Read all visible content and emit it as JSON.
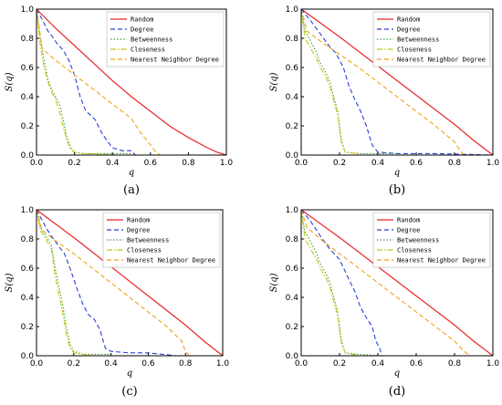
{
  "colors": {
    "Random": "#e8262a",
    "Degree": "#2a3fd6",
    "Betweenness": "#3aa23a",
    "Closeness": "#c8c81a",
    "Nearest Neighbor Degree": "#f2a118"
  },
  "chart_data": [
    {
      "type": "line",
      "panel_label": "(a)",
      "xlabel": "q",
      "ylabel": "S(q)",
      "xlim": [
        0,
        1
      ],
      "ylim": [
        0,
        1
      ],
      "xticks": [
        "0.0",
        "0.2",
        "0.4",
        "0.6",
        "0.8",
        "1.0"
      ],
      "yticks": [
        "0.0",
        "0.2",
        "0.4",
        "0.6",
        "0.8",
        "1.0"
      ],
      "grid": false,
      "legend_position": "top-right",
      "series": [
        {
          "name": "Random",
          "style": "solid",
          "x": [
            0,
            0.1,
            0.2,
            0.3,
            0.4,
            0.5,
            0.6,
            0.7,
            0.8,
            0.9,
            0.95,
            1.0
          ],
          "y": [
            1.0,
            0.87,
            0.75,
            0.63,
            0.51,
            0.4,
            0.3,
            0.2,
            0.12,
            0.05,
            0.02,
            0.0
          ]
        },
        {
          "name": "Degree",
          "style": "dashed",
          "x": [
            0,
            0.03,
            0.06,
            0.09,
            0.11,
            0.14,
            0.17,
            0.2,
            0.23,
            0.26,
            0.28,
            0.31,
            0.34,
            0.37,
            0.4,
            0.45,
            0.5,
            0.52
          ],
          "y": [
            1.0,
            0.93,
            0.85,
            0.8,
            0.76,
            0.72,
            0.65,
            0.55,
            0.4,
            0.3,
            0.28,
            0.24,
            0.16,
            0.1,
            0.05,
            0.03,
            0.03,
            0.0
          ]
        },
        {
          "name": "Betweenness",
          "style": "dotted",
          "x": [
            0,
            0.02,
            0.04,
            0.06,
            0.08,
            0.1,
            0.12,
            0.14,
            0.16,
            0.18,
            0.2,
            0.25,
            0.3,
            0.4,
            0.5
          ],
          "y": [
            1.0,
            0.8,
            0.65,
            0.52,
            0.45,
            0.4,
            0.35,
            0.25,
            0.12,
            0.05,
            0.02,
            0.01,
            0.01,
            0.01,
            0.01
          ]
        },
        {
          "name": "Closeness",
          "style": "dashdot",
          "x": [
            0,
            0.02,
            0.04,
            0.06,
            0.08,
            0.1,
            0.12,
            0.14,
            0.16,
            0.18,
            0.2,
            0.25,
            0.3,
            0.4
          ],
          "y": [
            1.0,
            0.75,
            0.6,
            0.5,
            0.43,
            0.38,
            0.3,
            0.2,
            0.1,
            0.04,
            0.02,
            0.01,
            0.01,
            0.0
          ]
        },
        {
          "name": "Nearest Neighbor Degree",
          "style": "dashed",
          "x": [
            0,
            0.03,
            0.1,
            0.2,
            0.3,
            0.4,
            0.5,
            0.55,
            0.6,
            0.63,
            0.65
          ],
          "y": [
            1.0,
            0.73,
            0.65,
            0.55,
            0.45,
            0.35,
            0.25,
            0.15,
            0.07,
            0.02,
            0.0
          ]
        }
      ]
    },
    {
      "type": "line",
      "panel_label": "(b)",
      "xlabel": "q",
      "ylabel": "S(q)",
      "xlim": [
        0,
        1
      ],
      "ylim": [
        0,
        1
      ],
      "xticks": [
        "0.0",
        "0.2",
        "0.4",
        "0.6",
        "0.8",
        "1.0"
      ],
      "yticks": [
        "0.0",
        "0.2",
        "0.4",
        "0.6",
        "0.8",
        "1.0"
      ],
      "grid": false,
      "legend_position": "top-right",
      "series": [
        {
          "name": "Random",
          "style": "solid",
          "x": [
            0,
            0.2,
            0.4,
            0.6,
            0.8,
            0.9,
            1.0
          ],
          "y": [
            1.0,
            0.81,
            0.61,
            0.41,
            0.21,
            0.1,
            0.0
          ]
        },
        {
          "name": "Degree",
          "style": "dashed",
          "x": [
            0,
            0.05,
            0.1,
            0.15,
            0.18,
            0.22,
            0.25,
            0.28,
            0.31,
            0.34,
            0.37,
            0.4,
            0.5,
            0.7,
            1.0
          ],
          "y": [
            1.0,
            0.92,
            0.83,
            0.74,
            0.7,
            0.6,
            0.47,
            0.38,
            0.3,
            0.2,
            0.07,
            0.02,
            0.01,
            0.01,
            0.0
          ]
        },
        {
          "name": "Betweenness",
          "style": "dotted",
          "x": [
            0,
            0.02,
            0.05,
            0.08,
            0.1,
            0.13,
            0.15,
            0.17,
            0.19,
            0.21,
            0.23,
            0.3,
            0.5
          ],
          "y": [
            1.0,
            0.85,
            0.78,
            0.7,
            0.63,
            0.56,
            0.5,
            0.4,
            0.3,
            0.1,
            0.02,
            0.01,
            0.01
          ]
        },
        {
          "name": "Closeness",
          "style": "dashdot",
          "x": [
            0,
            0.02,
            0.05,
            0.08,
            0.1,
            0.13,
            0.15,
            0.17,
            0.19,
            0.21,
            0.23,
            0.3
          ],
          "y": [
            1.0,
            0.8,
            0.73,
            0.66,
            0.6,
            0.53,
            0.47,
            0.37,
            0.28,
            0.08,
            0.02,
            0.01
          ]
        },
        {
          "name": "Nearest Neighbor Degree",
          "style": "dashed",
          "x": [
            0,
            0.03,
            0.1,
            0.2,
            0.3,
            0.4,
            0.5,
            0.6,
            0.7,
            0.8,
            0.83,
            0.85
          ],
          "y": [
            1.0,
            0.85,
            0.78,
            0.69,
            0.6,
            0.5,
            0.4,
            0.3,
            0.2,
            0.09,
            0.03,
            0.0
          ]
        }
      ]
    },
    {
      "type": "line",
      "panel_label": "(c)",
      "xlabel": "q",
      "ylabel": "S(q)",
      "xlim": [
        0,
        1
      ],
      "ylim": [
        0,
        1
      ],
      "xticks": [
        "0.0",
        "0.2",
        "0.4",
        "0.6",
        "0.8",
        "1.0"
      ],
      "yticks": [
        "0.0",
        "0.2",
        "0.4",
        "0.6",
        "0.8",
        "1.0"
      ],
      "grid": false,
      "legend_position": "top-right",
      "series": [
        {
          "name": "Random",
          "style": "solid",
          "x": [
            0,
            0.2,
            0.4,
            0.6,
            0.8,
            0.9,
            1.0
          ],
          "y": [
            1.0,
            0.81,
            0.61,
            0.41,
            0.21,
            0.1,
            0.0
          ]
        },
        {
          "name": "Degree",
          "style": "dashed",
          "x": [
            0,
            0.05,
            0.08,
            0.12,
            0.15,
            0.18,
            0.22,
            0.25,
            0.28,
            0.31,
            0.34,
            0.37,
            0.4,
            0.5,
            0.6,
            0.75
          ],
          "y": [
            1.0,
            0.88,
            0.82,
            0.75,
            0.7,
            0.6,
            0.45,
            0.35,
            0.28,
            0.25,
            0.18,
            0.05,
            0.03,
            0.02,
            0.02,
            0.0
          ]
        },
        {
          "name": "Betweenness",
          "style": "dotted",
          "x": [
            0,
            0.02,
            0.05,
            0.08,
            0.1,
            0.12,
            0.14,
            0.16,
            0.18,
            0.2,
            0.25,
            0.3,
            0.4
          ],
          "y": [
            1.0,
            0.88,
            0.82,
            0.76,
            0.6,
            0.48,
            0.35,
            0.2,
            0.08,
            0.03,
            0.01,
            0.01,
            0.01
          ]
        },
        {
          "name": "Closeness",
          "style": "dashdot",
          "x": [
            0,
            0.02,
            0.05,
            0.08,
            0.1,
            0.12,
            0.14,
            0.16,
            0.18,
            0.2,
            0.25,
            0.3
          ],
          "y": [
            1.0,
            0.86,
            0.8,
            0.73,
            0.55,
            0.42,
            0.3,
            0.15,
            0.05,
            0.02,
            0.01,
            0.0
          ]
        },
        {
          "name": "Nearest Neighbor Degree",
          "style": "dashed",
          "x": [
            0,
            0.03,
            0.1,
            0.2,
            0.3,
            0.4,
            0.5,
            0.6,
            0.7,
            0.78,
            0.8,
            0.82
          ],
          "y": [
            1.0,
            0.86,
            0.79,
            0.7,
            0.6,
            0.5,
            0.4,
            0.3,
            0.2,
            0.1,
            0.03,
            0.0
          ]
        }
      ]
    },
    {
      "type": "line",
      "panel_label": "(d)",
      "xlabel": "q",
      "ylabel": "S(q)",
      "xlim": [
        0,
        1
      ],
      "ylim": [
        0,
        1
      ],
      "xticks": [
        "0.0",
        "0.2",
        "0.4",
        "0.6",
        "0.8",
        "1.0"
      ],
      "yticks": [
        "0.0",
        "0.2",
        "0.4",
        "0.6",
        "0.8",
        "1.0"
      ],
      "grid": false,
      "legend_position": "top-right",
      "series": [
        {
          "name": "Random",
          "style": "solid",
          "x": [
            0,
            0.2,
            0.4,
            0.6,
            0.8,
            0.9,
            1.0
          ],
          "y": [
            1.0,
            0.81,
            0.61,
            0.41,
            0.21,
            0.1,
            0.0
          ]
        },
        {
          "name": "Degree",
          "style": "dashed",
          "x": [
            0,
            0.05,
            0.1,
            0.15,
            0.2,
            0.25,
            0.28,
            0.31,
            0.34,
            0.37,
            0.39,
            0.41,
            0.42
          ],
          "y": [
            1.0,
            0.92,
            0.82,
            0.73,
            0.66,
            0.52,
            0.44,
            0.33,
            0.26,
            0.2,
            0.1,
            0.05,
            0.0
          ]
        },
        {
          "name": "Betweenness",
          "style": "dotted",
          "x": [
            0,
            0.02,
            0.05,
            0.08,
            0.1,
            0.13,
            0.15,
            0.17,
            0.19,
            0.21,
            0.23,
            0.3,
            0.4
          ],
          "y": [
            1.0,
            0.85,
            0.78,
            0.7,
            0.63,
            0.56,
            0.5,
            0.4,
            0.3,
            0.1,
            0.02,
            0.01,
            0.0
          ]
        },
        {
          "name": "Closeness",
          "style": "dashdot",
          "x": [
            0,
            0.02,
            0.05,
            0.08,
            0.1,
            0.13,
            0.15,
            0.17,
            0.19,
            0.21,
            0.23,
            0.3
          ],
          "y": [
            1.0,
            0.8,
            0.73,
            0.66,
            0.6,
            0.53,
            0.47,
            0.37,
            0.28,
            0.08,
            0.02,
            0.0
          ]
        },
        {
          "name": "Nearest Neighbor Degree",
          "style": "dashed",
          "x": [
            0,
            0.03,
            0.1,
            0.2,
            0.3,
            0.4,
            0.5,
            0.6,
            0.7,
            0.8,
            0.85,
            0.88
          ],
          "y": [
            1.0,
            0.88,
            0.8,
            0.7,
            0.6,
            0.5,
            0.4,
            0.3,
            0.2,
            0.1,
            0.03,
            0.0
          ]
        }
      ]
    }
  ]
}
